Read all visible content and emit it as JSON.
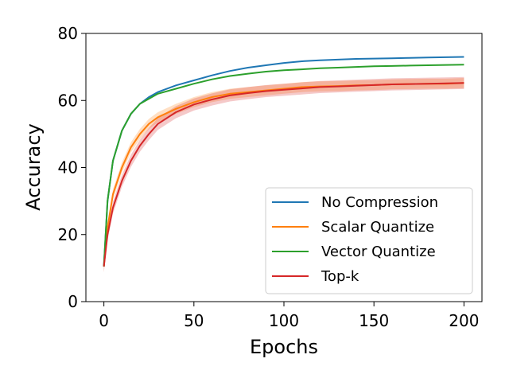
{
  "chart_data": {
    "type": "line",
    "title": "",
    "xlabel": "Epochs",
    "ylabel": "Accuracy",
    "xlim": [
      -10,
      210
    ],
    "ylim": [
      0,
      80
    ],
    "xticks": [
      0,
      50,
      100,
      150,
      200
    ],
    "yticks": [
      0,
      20,
      40,
      60,
      80
    ],
    "grid": false,
    "legend_position": "lower-right",
    "x": [
      0,
      2,
      5,
      10,
      15,
      20,
      25,
      30,
      40,
      50,
      60,
      70,
      80,
      90,
      100,
      110,
      120,
      130,
      140,
      150,
      160,
      170,
      180,
      190,
      200
    ],
    "series": [
      {
        "name": "No Compression",
        "color": "#1f77b4",
        "values": [
          10.5,
          30,
          42,
          51,
          56,
          59,
          61,
          62.5,
          64.5,
          66,
          67.5,
          68.8,
          69.8,
          70.5,
          71.2,
          71.7,
          72,
          72.2,
          72.4,
          72.5,
          72.6,
          72.7,
          72.8,
          72.9,
          73
        ]
      },
      {
        "name": "Scalar Quantize",
        "color": "#ff7f0e",
        "values": [
          10.5,
          22,
          32,
          40,
          46,
          50,
          53,
          55,
          57.5,
          59.5,
          61,
          62,
          62.5,
          63,
          63.5,
          64,
          64.2,
          64.3,
          64.5,
          64.6,
          64.8,
          64.9,
          65,
          65,
          65.2
        ],
        "band": 1.5
      },
      {
        "name": "Vector Quantize",
        "color": "#2ca02c",
        "values": [
          10.5,
          30,
          42,
          51,
          56,
          59,
          60.5,
          62,
          63.5,
          65,
          66.3,
          67.3,
          68,
          68.6,
          69,
          69.3,
          69.6,
          69.8,
          70,
          70.2,
          70.3,
          70.4,
          70.5,
          70.6,
          70.7
        ]
      },
      {
        "name": "Top-k",
        "color": "#d62728",
        "values": [
          10.5,
          20,
          28,
          36,
          42,
          46.5,
          50,
          53,
          56.5,
          58.8,
          60.3,
          61.5,
          62.2,
          62.8,
          63.2,
          63.6,
          64,
          64.2,
          64.4,
          64.6,
          64.8,
          64.9,
          65,
          65.1,
          65.2
        ],
        "band": 1.8
      }
    ]
  }
}
